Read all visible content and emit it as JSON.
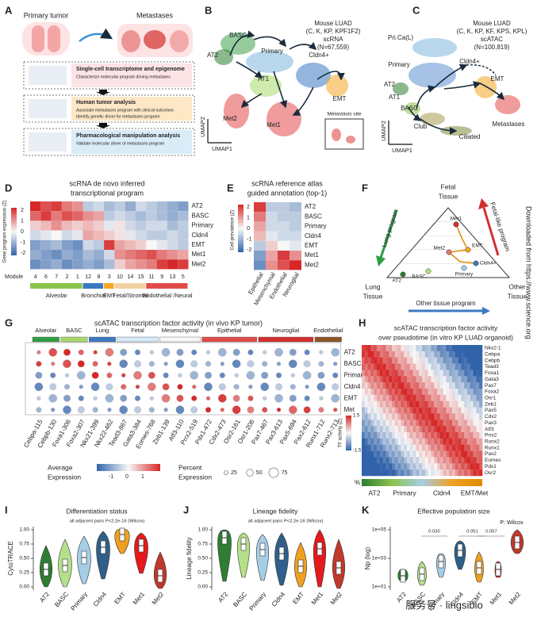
{
  "panel_a": {
    "label": "A",
    "primary": "Primary tumor",
    "metastases": "Metastases",
    "steps": [
      {
        "title": "Single-cell transcriptome and epigenome",
        "lines": [
          "Characterize molecular program driving metastases"
        ]
      },
      {
        "title": "Human tumor analysis",
        "lines": [
          "Associate metastases program with clinical outcomes",
          "Identify genetic driver for metastases program"
        ]
      },
      {
        "title": "Pharmacological manipulation analysis",
        "lines": [
          "Validate molecular driver of metastases program"
        ]
      }
    ]
  },
  "panel_b": {
    "label": "B",
    "header": [
      "Mouse LUAD",
      "(C, K, KP, KPF1F2)",
      "scRNA",
      "(N=67,559)"
    ],
    "clusters": [
      "BASC",
      "AT2",
      "Primary",
      "Cldn4+",
      "AT1",
      "EMT",
      "Met2",
      "Met1"
    ],
    "inset": "Metastasis site",
    "x_axis": "UMAP1",
    "y_axis": "UMAP2"
  },
  "panel_c": {
    "label": "C",
    "header": [
      "Mouse LUAD",
      "(C, K, KP, KF, KPS, KPL)",
      "scATAC",
      "(N=100,819)"
    ],
    "clusters": [
      "Pri.Ca(L)",
      "Primary",
      "Cldn4+",
      "AT2",
      "AT1",
      "BASC",
      "EMT",
      "Club",
      "Ciliated",
      "Metastases"
    ],
    "x_axis": "UMAP1",
    "y_axis": "UMAP2"
  },
  "panel_d": {
    "label": "D",
    "title": [
      "scRNA de novo inferred",
      "transcriptional program"
    ],
    "colorbar_label": "Gene program expression (Z)",
    "colorbar_ticks": [
      "2",
      "1",
      "0",
      "-1",
      "-2"
    ],
    "rows": [
      "AT2",
      "BASC",
      "Primary",
      "Cldn4",
      "EMT",
      "Met1",
      "Met2"
    ],
    "module_label": "Module",
    "modules": [
      "4",
      "6",
      "7",
      "2",
      "1",
      "12",
      "8",
      "3",
      "10",
      "14",
      "15",
      "11",
      "9",
      "13",
      "5"
    ],
    "groups": [
      "Alveolar",
      "Bronchial",
      "EMT",
      "Fetal/Stromal",
      "Endothelial /Neural"
    ]
  },
  "panel_e": {
    "label": "E",
    "title": [
      "scRNA reference atlas",
      "guided annotation (top-1)"
    ],
    "colorbar_label": "Cell prevalence (Z)",
    "colorbar_ticks": [
      "2",
      "1",
      "0",
      "-1",
      "-2"
    ],
    "rows": [
      "AT2",
      "BASC",
      "Primary",
      "Cldn4",
      "EMT",
      "Met1",
      "Met2"
    ],
    "columns": [
      "Epithelial",
      "Mesenchymal",
      "Endothelial",
      "Neuroglial"
    ]
  },
  "panel_f": {
    "label": "F",
    "top": [
      "Fetal",
      "Tissue"
    ],
    "left": [
      "Lung",
      "Tissue"
    ],
    "right": [
      "Other",
      "Tissue"
    ],
    "lung_program": "Lung program",
    "fetal_program": "Fetal-like program",
    "other_program": "Other tissue program",
    "points": [
      "Met1",
      "EMT",
      "Met2",
      "Cldn4+",
      "Primary",
      "BASC",
      "AT2"
    ]
  },
  "side_note": "Downloaded from https://www.science.org",
  "panel_g": {
    "label": "G",
    "title": "scATAC transcription factor activity (in vivo KP tumor)",
    "groups": [
      "Alveolar",
      "BASC",
      "Lung",
      "Fetal",
      "Mesenchymal",
      "Epithelial",
      "Neuroglial",
      "Endothelial"
    ],
    "rows": [
      "AT2",
      "BASC",
      "Primary",
      "Cldn4",
      "EMT",
      "Met"
    ],
    "columns": [
      "Cebpa-115",
      "Cebpb-130",
      "Foxa1-306",
      "Foxa2-307",
      "Nkx21-399",
      "Nkx22-462",
      "Tead3-867",
      "Gata3-384",
      "Eomes-768",
      "Zeb1-139",
      "Atf3-110",
      "Prrx2-519",
      "Pdx1-472",
      "Cdx2-473",
      "Osr2-161",
      "Osr1-206",
      "Pax7-467",
      "Pax3-613",
      "Pax5-694",
      "Pax2-612",
      "Runx1-712",
      "Runx2-713"
    ],
    "avg_legend": [
      "Average",
      "Expression"
    ],
    "avg_ticks": [
      "-1",
      "0",
      "1"
    ],
    "pct_legend": [
      "Percent",
      "Expression"
    ],
    "pct_ticks": [
      "25",
      "50",
      "75"
    ]
  },
  "panel_h": {
    "label": "H",
    "title": [
      "scATAC transcription factor activity",
      "over pseudotime (in vitro KP LUAD organoid)"
    ],
    "genes": [
      "Nkx2-1",
      "Cebpa",
      "Cebpb",
      "Tead3",
      "Foxa1",
      "Gata3",
      "Pax7",
      "Foxa2",
      "Osr1",
      "Zeb1",
      "Pax5",
      "Cdx2",
      "Pax3",
      "Atf3",
      "Prrx2",
      "Runx2",
      "Runx1",
      "Pax2",
      "Eomes",
      "Pdx1",
      "Osr2"
    ],
    "colorbar_label": "TF activity (Z)",
    "colorbar_ticks": [
      "1.5",
      "-1.5"
    ],
    "strip_label": "%",
    "stages": [
      "AT2",
      "Primary",
      "Cldn4",
      "EMT/Met"
    ]
  },
  "panel_i": {
    "label": "I",
    "title": "Differentiation status",
    "subtitle": "all adjacent pairs P<2.2e-16 (Wilcox)",
    "y_axis": "CytoTRACE",
    "yticks": [
      "1.00",
      "0.75",
      "0.50",
      "0.25",
      "0.00"
    ],
    "groups": [
      "AT2",
      "BASC",
      "Primary",
      "Cldn4",
      "EMT",
      "Met1",
      "Met2"
    ]
  },
  "panel_j": {
    "label": "J",
    "title": "Lineage fidelity",
    "subtitle": "all adjacent pairs P<2.2e-16 (Wilcox)",
    "y_axis": "Lineage fidelity",
    "yticks": [
      "1.00",
      "0.75",
      "0.50",
      "0.25",
      "0.00"
    ],
    "groups": [
      "AT2",
      "BASC",
      "Primary",
      "Cldn4",
      "EMT",
      "Met1",
      "Met2"
    ]
  },
  "panel_k": {
    "label": "K",
    "title": "Effective population size",
    "note": "P: Wilcox",
    "y_axis": "Np (log)",
    "yticks": [
      "1e+05",
      "1e+03",
      "1e+01"
    ],
    "pvalues": [
      "0.030",
      "0.051",
      "0.057"
    ],
    "groups": [
      "AT2",
      "BASC",
      "Primary",
      "Cldn4",
      "EMT",
      "Met1",
      "Met2"
    ]
  },
  "watermark": "服务号 · lingsibio"
}
